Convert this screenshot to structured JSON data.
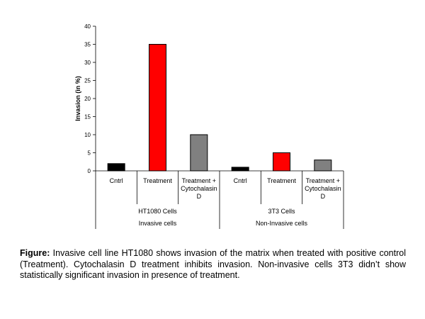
{
  "chart_data": {
    "type": "bar",
    "ylabel": "Invasion (in %)",
    "ylim": [
      0,
      40
    ],
    "yticks": [
      0,
      5,
      10,
      15,
      20,
      25,
      30,
      35,
      40
    ],
    "categories": [
      "Cntrl",
      "Treatment",
      "Treatment + Cytochalasin D",
      "Cntrl",
      "Treatment",
      "Treatment + Cytochalasin D"
    ],
    "category_lines": [
      [
        "Cntrl"
      ],
      [
        "Treatment"
      ],
      [
        "Treatment +",
        "Cytochalasin",
        "D"
      ],
      [
        "Cntrl"
      ],
      [
        "Treatment"
      ],
      [
        "Treatment +",
        "Cytochalasin",
        "D"
      ]
    ],
    "values": [
      2,
      35,
      10,
      1,
      5,
      3
    ],
    "bar_colors": [
      "#000000",
      "#ff0000",
      "#808080",
      "#000000",
      "#ff0000",
      "#808080"
    ],
    "groups": [
      "HT1080 Cells",
      "3T3 Cells"
    ],
    "supergroups": [
      "Invasive cells",
      "Non-Invasive cells"
    ],
    "grid": false,
    "legend": "none"
  },
  "caption": {
    "label": "Figure:",
    "text": " Invasive cell line HT1080 shows invasion of the matrix when treated with positive control (Treatment). Cytochalasin D treatment inhibits invasion. Non-invasive cells 3T3 didn’t show statistically significant invasion in presence of treatment."
  }
}
